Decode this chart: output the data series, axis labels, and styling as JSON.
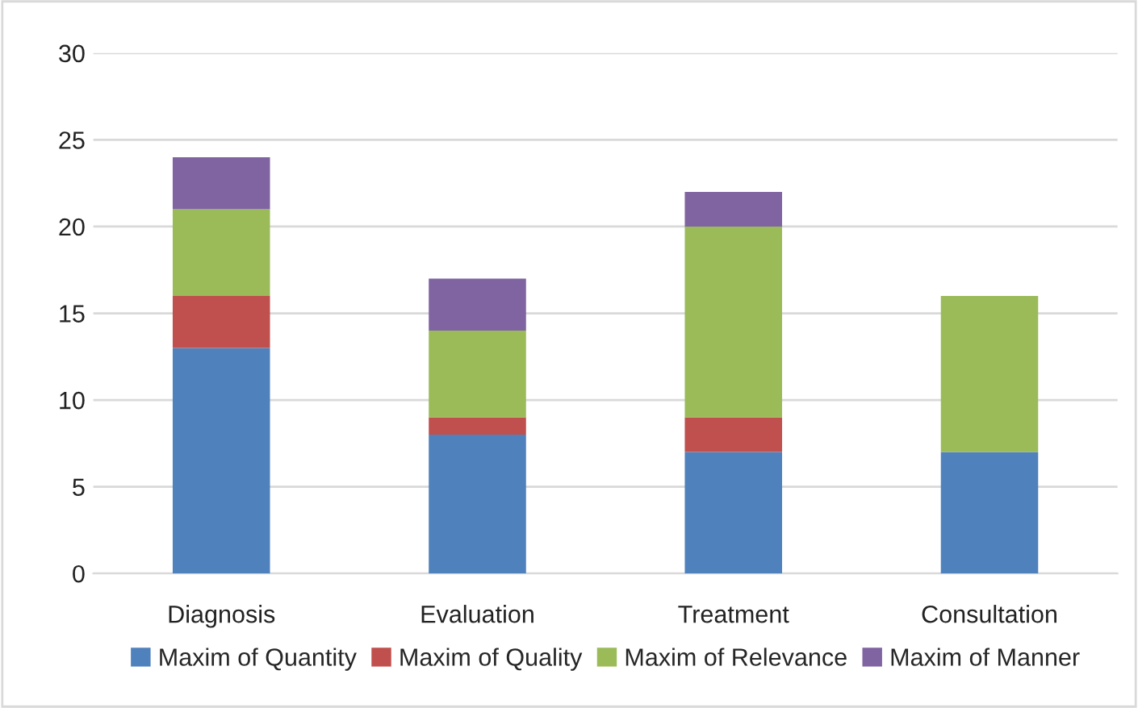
{
  "chart_data": {
    "type": "bar",
    "stacked": true,
    "categories": [
      "Diagnosis",
      "Evaluation",
      "Treatment",
      "Consultation"
    ],
    "series": [
      {
        "name": "Maxim of Quantity",
        "color": "#4f81bd",
        "values": [
          13,
          8,
          7,
          7
        ]
      },
      {
        "name": "Maxim of Quality",
        "color": "#c0504d",
        "values": [
          3,
          1,
          2,
          0
        ]
      },
      {
        "name": "Maxim of Relevance",
        "color": "#9bbb59",
        "values": [
          5,
          5,
          11,
          9
        ]
      },
      {
        "name": "Maxim of Manner",
        "color": "#8064a2",
        "values": [
          3,
          3,
          2,
          0
        ]
      }
    ],
    "ylim": [
      0,
      30
    ],
    "yticks": [
      0,
      5,
      10,
      15,
      20,
      25,
      30
    ],
    "grid": "y",
    "legend": "bottom"
  }
}
